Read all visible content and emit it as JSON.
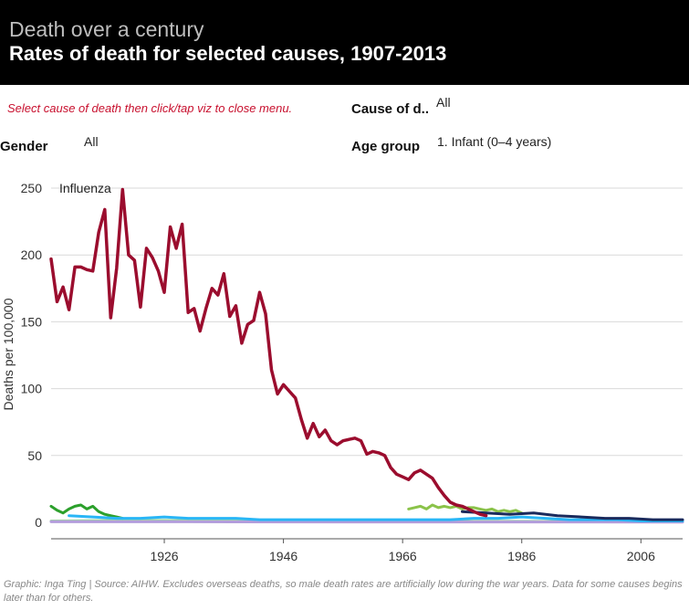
{
  "header": {
    "kicker": "Death over a century",
    "title": "Rates of death for selected causes, 1907-2013"
  },
  "controls": {
    "instruction": "Select cause of death then click/tap viz to close menu.",
    "cause_label": "Cause of d..",
    "cause_value": "All",
    "gender_label": "Gender",
    "gender_value": "All",
    "age_label": "Age group",
    "age_value": "1. Infant (0–4 years)"
  },
  "footer": {
    "note": "Graphic: Inga Ting | Source: AIHW. Excludes overseas deaths, so male death rates are artificially low during the war years. Data for some causes begins later than for others."
  },
  "chart_data": {
    "type": "line",
    "ylabel": "Deaths per 100,000",
    "xlabel": "",
    "xlim": [
      1907,
      2013
    ],
    "ylim": [
      0,
      250
    ],
    "yticks": [
      0,
      50,
      100,
      150,
      200,
      250
    ],
    "xticks": [
      1926,
      1946,
      1966,
      1986,
      2006
    ],
    "grid": true,
    "annotations": [
      {
        "text": "Influenza",
        "x": 1908,
        "y": 250
      }
    ],
    "series": [
      {
        "color": "#9b0d2e",
        "x": [
          1907,
          1908,
          1909,
          1910,
          1911,
          1912,
          1913,
          1914,
          1915,
          1916,
          1917,
          1918,
          1919,
          1920,
          1921,
          1922,
          1923,
          1924,
          1925,
          1926,
          1927,
          1928,
          1929,
          1930,
          1931,
          1932,
          1933,
          1934,
          1935,
          1936,
          1937,
          1938,
          1939,
          1940,
          1941,
          1942,
          1943,
          1944,
          1945,
          1946,
          1947,
          1948,
          1949,
          1950,
          1951,
          1952,
          1953,
          1954,
          1955,
          1956,
          1957,
          1958,
          1959,
          1960,
          1961,
          1962,
          1963,
          1964,
          1965,
          1966,
          1967,
          1968,
          1969,
          1970,
          1971,
          1972,
          1973,
          1974,
          1975,
          1976,
          1977,
          1978,
          1979,
          1980
        ],
        "values": [
          197,
          165,
          176,
          159,
          191,
          191,
          189,
          188,
          217,
          234,
          153,
          190,
          249,
          200,
          196,
          161,
          205,
          198,
          188,
          172,
          221,
          205,
          223,
          157,
          160,
          143,
          160,
          175,
          170,
          186,
          154,
          162,
          134,
          148,
          151,
          172,
          156,
          114,
          96,
          103,
          98,
          93,
          77,
          63,
          74,
          64,
          69,
          61,
          58,
          61,
          62,
          63,
          61,
          51,
          53,
          52,
          50,
          41,
          36,
          34,
          32,
          37,
          39,
          36,
          33,
          26,
          20,
          15,
          13,
          12,
          10,
          8,
          6,
          5
        ]
      },
      {
        "color": "#2ca02c",
        "x": [
          1907,
          1908,
          1909,
          1910,
          1911,
          1912,
          1913,
          1914,
          1915,
          1916,
          1917,
          1918,
          1919
        ],
        "values": [
          12,
          9,
          7,
          10,
          12,
          13,
          10,
          12,
          8,
          6,
          5,
          4,
          3
        ]
      },
      {
        "color": "#8bc34a",
        "x": [
          1967,
          1968,
          1969,
          1970,
          1971,
          1972,
          1973,
          1974,
          1975,
          1976,
          1977,
          1978,
          1979,
          1980,
          1981,
          1982,
          1983,
          1984,
          1985,
          1986
        ],
        "values": [
          10,
          11,
          12,
          10,
          13,
          11,
          12,
          11,
          12,
          10,
          11,
          11,
          10,
          9,
          10,
          8,
          9,
          8,
          9,
          7
        ]
      },
      {
        "color": "#1a2a5c",
        "x": [
          1976,
          1980,
          1984,
          1988,
          1992,
          1996,
          2000,
          2004,
          2008,
          2013
        ],
        "values": [
          8,
          7,
          6,
          7,
          5,
          4,
          3,
          3,
          2,
          2
        ]
      },
      {
        "color": "#29b6f6",
        "x": [
          1910,
          1914,
          1918,
          1922,
          1926,
          1930,
          1934,
          1938,
          1942,
          1946,
          1950,
          1954,
          1958,
          1962,
          1966,
          1970,
          1974,
          1978,
          1982,
          1986,
          1990,
          1994,
          1998,
          2002,
          2006,
          2013
        ],
        "values": [
          5,
          4,
          3,
          3,
          4,
          3,
          3,
          3,
          2,
          2,
          2,
          2,
          2,
          2,
          2,
          2,
          2,
          3,
          3,
          4,
          3,
          2,
          2,
          2,
          1,
          1
        ]
      },
      {
        "color": "#b39ddb",
        "x": [
          1907,
          1930,
          1960,
          1990,
          2013
        ],
        "values": [
          0.4,
          0.4,
          0.3,
          0.3,
          0.2
        ]
      },
      {
        "color": "#a5d6a7",
        "x": [
          1907,
          1920,
          1940,
          1960,
          1980,
          2000,
          2013
        ],
        "values": [
          1,
          1.5,
          1.2,
          1,
          0.8,
          0.6,
          0.5
        ]
      }
    ]
  }
}
